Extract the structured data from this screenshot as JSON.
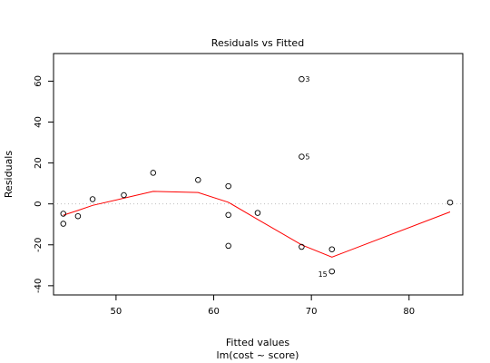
{
  "chart_data": {
    "type": "scatter",
    "title": "Residuals vs Fitted",
    "xlabel": "Fitted values",
    "subtitle": "lm(cost ~ score)",
    "ylabel": "Residuals",
    "xlim": [
      43.6,
      85.5
    ],
    "ylim": [
      -44.5,
      73.5
    ],
    "x_ticks": [
      50,
      60,
      70,
      80
    ],
    "y_ticks": [
      -40,
      -20,
      0,
      20,
      40,
      60
    ],
    "reference_line_y": 0,
    "grid": false,
    "colors": {
      "points": "#000000",
      "smoother": "#ff0000",
      "reference": "#bebebe"
    },
    "points": [
      {
        "x": 44.6,
        "y": -4.8
      },
      {
        "x": 44.6,
        "y": -9.7
      },
      {
        "x": 46.1,
        "y": -6.0
      },
      {
        "x": 47.6,
        "y": 2.3
      },
      {
        "x": 50.8,
        "y": 4.3
      },
      {
        "x": 53.8,
        "y": 15.2
      },
      {
        "x": 58.4,
        "y": 11.7
      },
      {
        "x": 61.5,
        "y": 8.7
      },
      {
        "x": 61.5,
        "y": -5.4
      },
      {
        "x": 61.5,
        "y": -20.5
      },
      {
        "x": 64.5,
        "y": -4.4
      },
      {
        "x": 69.0,
        "y": 61.0,
        "label": "3"
      },
      {
        "x": 69.0,
        "y": 23.1,
        "label": "5"
      },
      {
        "x": 69.0,
        "y": -21.0
      },
      {
        "x": 72.1,
        "y": -22.2
      },
      {
        "x": 72.1,
        "y": -33.0,
        "label": "15"
      },
      {
        "x": 84.2,
        "y": 0.7
      }
    ],
    "smoother": {
      "x": [
        44.6,
        46.1,
        47.6,
        50.8,
        53.8,
        58.4,
        61.5,
        64.5,
        69.0,
        72.1,
        84.2
      ],
      "y": [
        -5.5,
        -3.2,
        -0.7,
        2.8,
        6.1,
        5.6,
        0.8,
        -7.6,
        -20.0,
        -26.0,
        -3.9
      ]
    }
  }
}
